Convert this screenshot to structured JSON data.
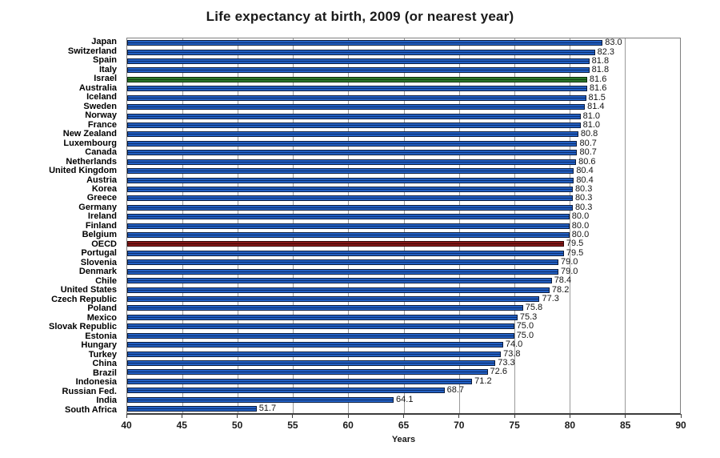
{
  "chart_data": {
    "type": "bar",
    "orientation": "horizontal",
    "title": "Life expectancy at birth, 2009 (or nearest year)",
    "xlabel": "Years",
    "xlim": [
      40,
      90
    ],
    "xticks": [
      40,
      45,
      50,
      55,
      60,
      65,
      70,
      75,
      80,
      85,
      90
    ],
    "grid": "vertical",
    "legend": "none",
    "categories": [
      "Japan",
      "Switzerland",
      "Spain",
      "Italy",
      "Israel",
      "Australia",
      "Iceland",
      "Sweden",
      "Norway",
      "France",
      "New Zealand",
      "Luxembourg",
      "Canada",
      "Netherlands",
      "United Kingdom",
      "Austria",
      "Korea",
      "Greece",
      "Germany",
      "Ireland",
      "Finland",
      "Belgium",
      "OECD",
      "Portugal",
      "Slovenia",
      "Denmark",
      "Chile",
      "United States",
      "Czech Republic",
      "Poland",
      "Mexico",
      "Slovak Republic",
      "Estonia",
      "Hungary",
      "Turkey",
      "China",
      "Brazil",
      "Indonesia",
      "Russian Fed.",
      "India",
      "South Africa"
    ],
    "values": [
      83.0,
      82.3,
      81.8,
      81.8,
      81.6,
      81.6,
      81.5,
      81.4,
      81.0,
      81.0,
      80.8,
      80.7,
      80.7,
      80.6,
      80.4,
      80.4,
      80.3,
      80.3,
      80.3,
      80.0,
      80.0,
      80.0,
      79.5,
      79.5,
      79.0,
      79.0,
      78.4,
      78.2,
      77.3,
      75.8,
      75.3,
      75.0,
      75.0,
      74.0,
      73.8,
      73.3,
      72.6,
      71.2,
      68.7,
      64.1,
      51.7
    ],
    "colors": {
      "default": {
        "light": "#2565cb",
        "dark": "#0d2f70",
        "border": "#0b1b3c"
      },
      "Israel": {
        "light": "#2d7d2d",
        "dark": "#123f12",
        "border": "#0a2b0a"
      },
      "OECD": {
        "light": "#8c1a1a",
        "dark": "#420808",
        "border": "#330606"
      }
    }
  }
}
